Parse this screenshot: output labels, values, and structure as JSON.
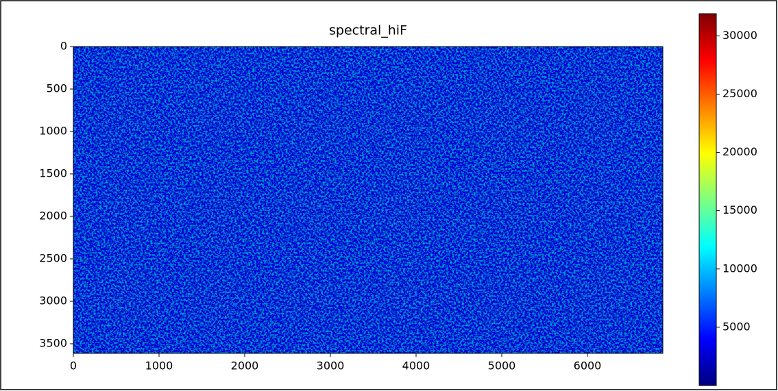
{
  "chart_data": {
    "type": "heatmap",
    "title": "spectral_hiF",
    "xlim": [
      0,
      6880
    ],
    "xticks": [
      0,
      1000,
      2000,
      3000,
      4000,
      5000,
      6000
    ],
    "ylim": [
      3613,
      0
    ],
    "yticks": [
      0,
      500,
      1000,
      1500,
      2000,
      2500,
      3000,
      3500
    ],
    "colorbar": {
      "colormap": "jet",
      "lim": [
        0,
        31900
      ],
      "ticks": [
        5000,
        10000,
        15000,
        20000,
        25000,
        30000
      ]
    }
  }
}
